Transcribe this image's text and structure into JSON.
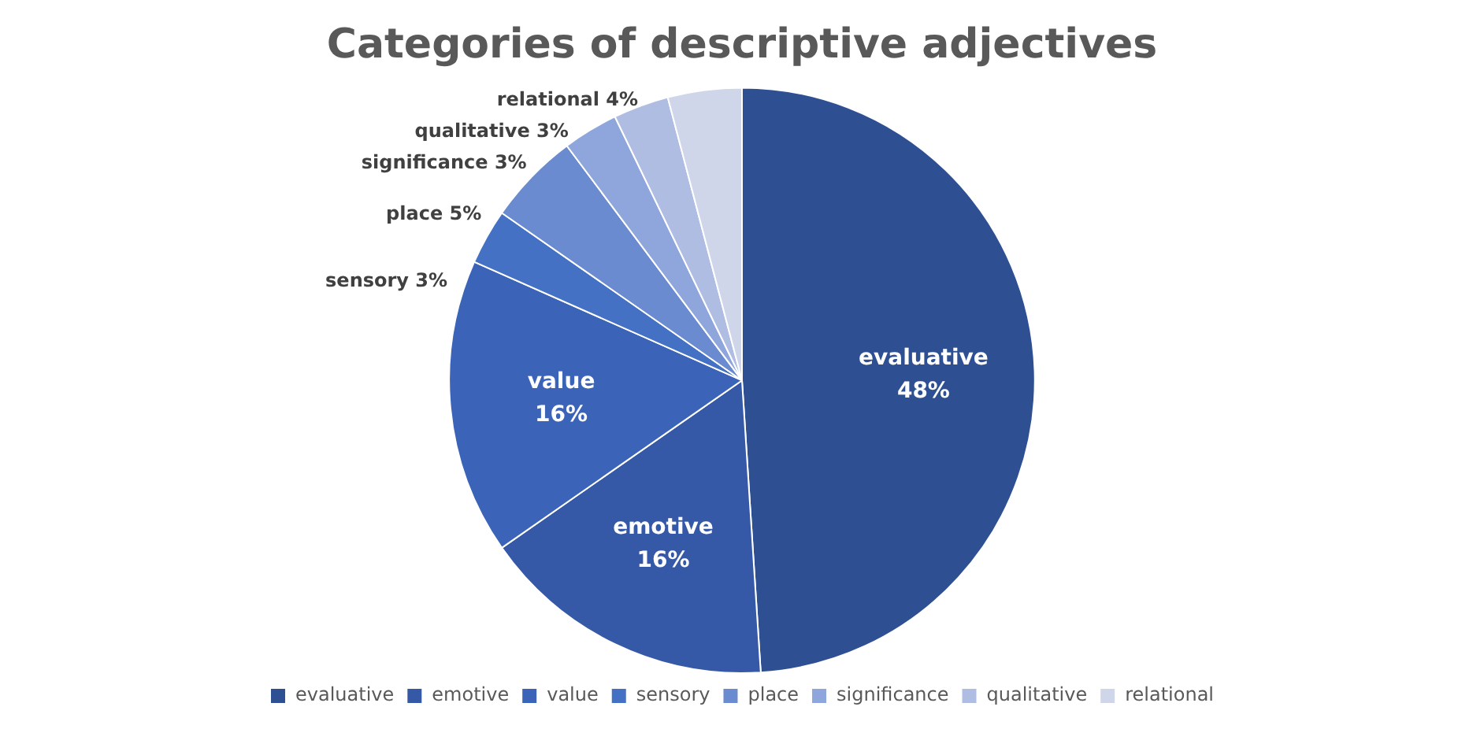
{
  "chart_data": {
    "type": "pie",
    "title": "Categories of descriptive adjectives",
    "categories": [
      "evaluative",
      "emotive",
      "value",
      "sensory",
      "place",
      "significance",
      "qualitative",
      "relational"
    ],
    "values": [
      48,
      16,
      16,
      3,
      5,
      3,
      3,
      4
    ],
    "value_labels": [
      "48%",
      "16%",
      "16%",
      "3%",
      "5%",
      "3%",
      "3%",
      "4%"
    ],
    "colors": [
      "#2e5093",
      "#3559a6",
      "#3b64b8",
      "#4471c4",
      "#6a8bd0",
      "#8ea6db",
      "#b0bde3",
      "#cfd6ea"
    ],
    "legend": "bottom"
  }
}
